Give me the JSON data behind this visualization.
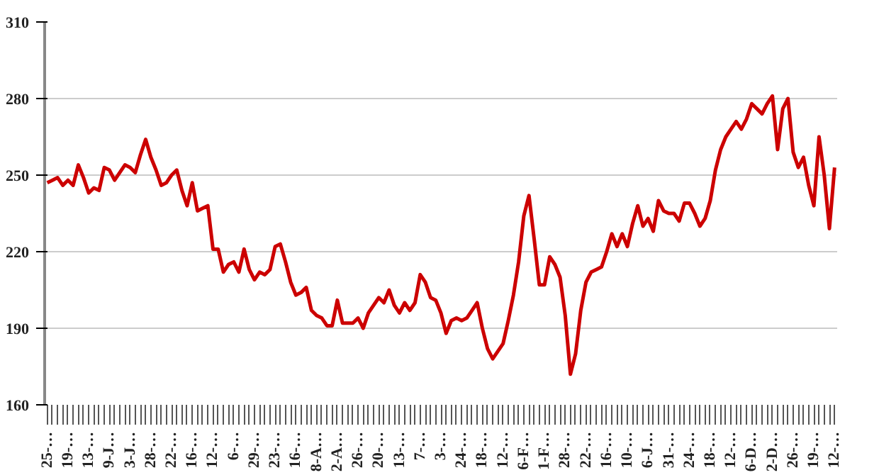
{
  "chart_data": {
    "type": "line",
    "categories": [
      "25-…",
      null,
      null,
      null,
      "19-…",
      null,
      null,
      null,
      "13-…",
      null,
      null,
      null,
      "9-J…",
      null,
      null,
      null,
      "3-J…",
      null,
      null,
      null,
      "28-…",
      null,
      null,
      null,
      "22-…",
      null,
      null,
      null,
      "16-…",
      null,
      null,
      null,
      "12-…",
      null,
      null,
      null,
      "6-…",
      null,
      null,
      null,
      "29-…",
      null,
      null,
      null,
      "23-…",
      null,
      null,
      null,
      "16-…",
      null,
      null,
      null,
      "8-A…",
      null,
      null,
      null,
      "2-A…",
      null,
      null,
      null,
      "26-…",
      null,
      null,
      null,
      "20-…",
      null,
      null,
      null,
      "13-…",
      null,
      null,
      null,
      "7-…",
      null,
      null,
      null,
      "3-…",
      null,
      null,
      null,
      "24-…",
      null,
      null,
      null,
      "18-…",
      null,
      null,
      null,
      "12-…",
      null,
      null,
      null,
      "6-F…",
      null,
      null,
      null,
      "1-F…",
      null,
      null,
      null,
      "28-…",
      null,
      null,
      null,
      "22-…",
      null,
      null,
      null,
      "16-…",
      null,
      null,
      null,
      "10-…",
      null,
      null,
      null,
      "6-J…",
      null,
      null,
      null,
      "31-…",
      null,
      null,
      null,
      "24-…",
      null,
      null,
      null,
      "18-…",
      null,
      null,
      null,
      "12-…",
      null,
      null,
      null,
      "6-D…",
      null,
      null,
      null,
      "2-D…",
      null,
      null,
      null,
      "26-…",
      null,
      null,
      null,
      "19-…",
      null,
      null,
      null,
      "12-…"
    ],
    "series": [
      {
        "color": "#cc0000",
        "values": [
          247,
          248,
          249,
          246,
          248,
          246,
          254,
          249,
          243,
          245,
          244,
          253,
          252,
          248,
          251,
          254,
          253,
          251,
          258,
          264,
          257,
          252,
          246,
          247,
          250,
          252,
          244,
          238,
          247,
          236,
          237,
          238,
          221,
          221,
          212,
          215,
          216,
          212,
          221,
          213,
          209,
          212,
          211,
          213,
          222,
          223,
          216,
          208,
          203,
          204,
          206,
          197,
          195,
          194,
          191,
          191,
          201,
          192,
          192,
          192,
          194,
          190,
          196,
          199,
          202,
          200,
          205,
          199,
          196,
          200,
          197,
          200,
          211,
          208,
          202,
          201,
          196,
          188,
          193,
          194,
          193,
          194,
          197,
          200,
          190,
          182,
          178,
          181,
          184,
          193,
          203,
          216,
          234,
          242,
          225,
          207,
          207,
          218,
          215,
          210,
          195,
          172,
          180,
          197,
          208,
          212,
          213,
          214,
          220,
          227,
          222,
          227,
          222,
          231,
          238,
          230,
          233,
          228,
          240,
          236,
          235,
          235,
          232,
          239,
          239,
          235,
          230,
          233,
          240,
          252,
          260,
          265,
          268,
          271,
          268,
          272,
          278,
          276,
          274,
          278,
          281,
          260,
          276,
          280,
          259,
          253,
          257,
          246,
          238,
          265,
          250,
          229,
          253
        ]
      }
    ],
    "ylim": [
      160,
      310
    ],
    "yticks": [
      160,
      190,
      220,
      250,
      280,
      310
    ],
    "grid": "y",
    "line_style": "solid",
    "marker": "none"
  }
}
